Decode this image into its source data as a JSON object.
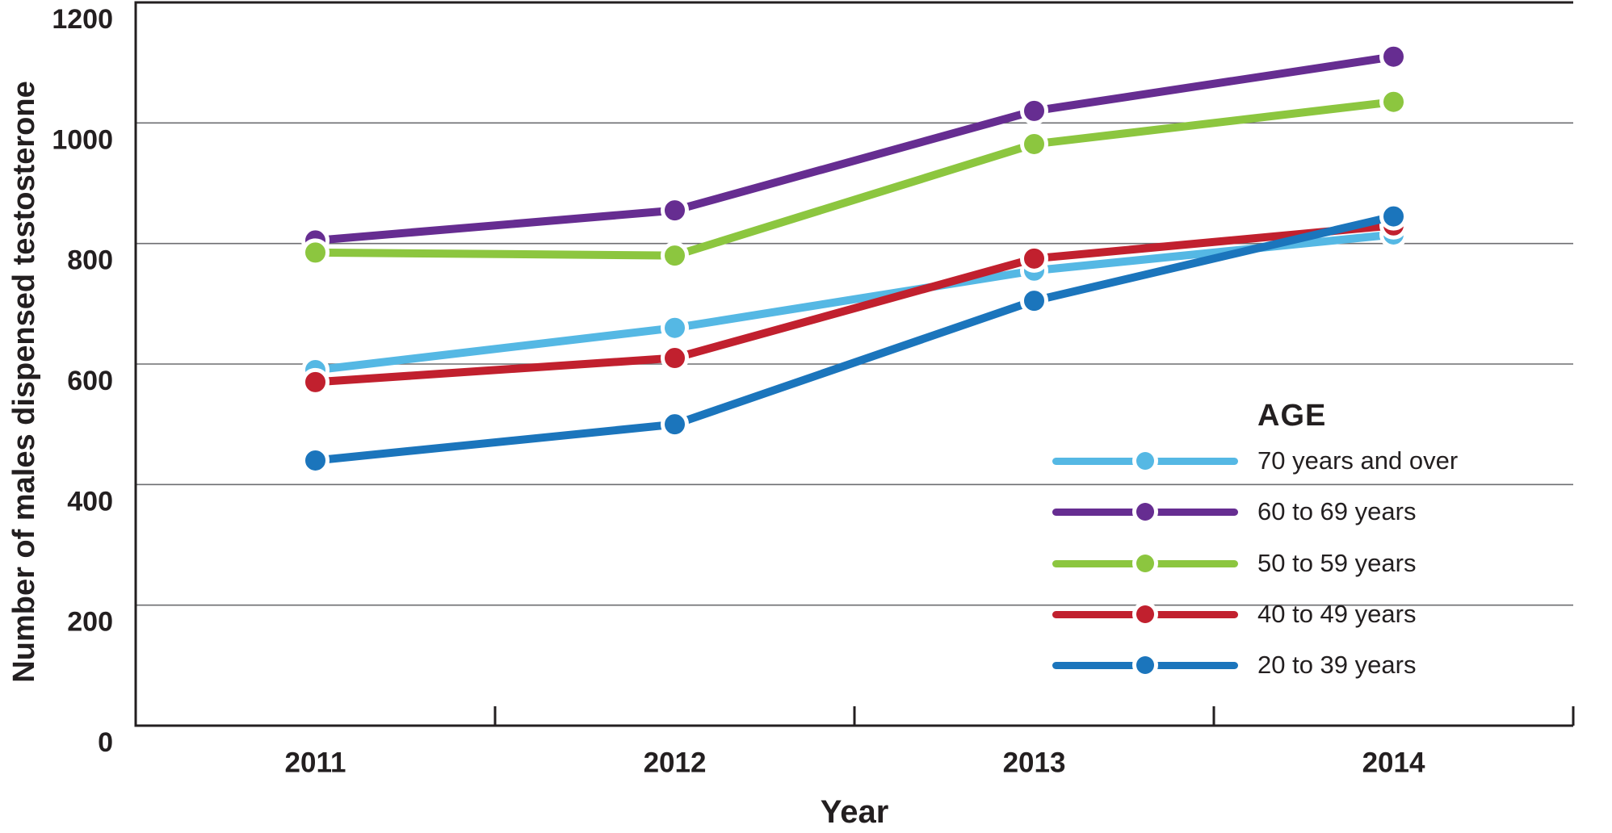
{
  "chart_data": {
    "type": "line",
    "title": "",
    "xlabel": "Year",
    "ylabel": "Number of males dispensed testosterone",
    "categories": [
      "2011",
      "2012",
      "2013",
      "2014"
    ],
    "yticks": [
      0,
      200,
      400,
      600,
      800,
      1000,
      1200
    ],
    "ylim": [
      0,
      1200
    ],
    "grid": "horizontal-only",
    "legend": {
      "title": "AGE",
      "position": "inside-right"
    },
    "series": [
      {
        "name": "70 years and over",
        "color": "#55b8e4",
        "values": [
          590,
          660,
          755,
          815
        ]
      },
      {
        "name": "60 to 69 years",
        "color": "#662d91",
        "values": [
          805,
          855,
          1020,
          1110
        ]
      },
      {
        "name": "50 to 59 years",
        "color": "#8cc63f",
        "values": [
          785,
          780,
          965,
          1035
        ]
      },
      {
        "name": "40 to 49 years",
        "color": "#c1202e",
        "values": [
          570,
          610,
          775,
          830
        ]
      },
      {
        "name": "20 to 39 years",
        "color": "#1b75bc",
        "values": [
          440,
          500,
          705,
          845
        ]
      }
    ],
    "style_colors": {
      "axis": "#231f20",
      "gridline": "#6d6e71",
      "text": "#231f20",
      "background": "#ffffff"
    }
  }
}
